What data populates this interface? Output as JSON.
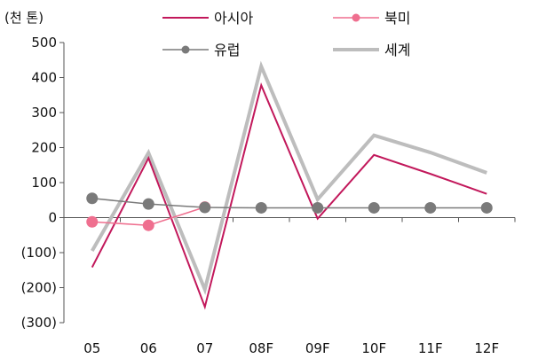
{
  "chart_data": {
    "type": "line",
    "unit": "(천 톤)",
    "categories": [
      "05",
      "06",
      "07",
      "08F",
      "09F",
      "10F",
      "11F",
      "12F"
    ],
    "y_ticks": [
      "500",
      "400",
      "300",
      "200",
      "100",
      "0",
      "(100)",
      "(200)",
      "(300)"
    ],
    "y_tick_values": [
      500,
      400,
      300,
      200,
      100,
      0,
      -100,
      -200,
      -300
    ],
    "ylim": [
      -300,
      500
    ],
    "grid": false,
    "legend_position": "top",
    "series": [
      {
        "name": "아시아",
        "color": "#c2185b",
        "marker": "none",
        "width": 2,
        "values": [
          -142,
          170,
          -255,
          378,
          -3,
          179,
          125,
          68
        ]
      },
      {
        "name": "북미",
        "color": "#ef6f8f",
        "marker": "circle",
        "width": 1.5,
        "values": [
          -12,
          -22,
          30,
          null,
          null,
          null,
          null,
          null
        ]
      },
      {
        "name": "유럽",
        "color": "#7a7a7a",
        "marker": "circle",
        "width": 1.5,
        "values": [
          55,
          39,
          29,
          28,
          28,
          28,
          28,
          28
        ]
      },
      {
        "name": "세계",
        "color": "#bdbdbd",
        "marker": "none",
        "width": 4,
        "values": [
          -95,
          185,
          -205,
          432,
          52,
          235,
          186,
          128
        ]
      }
    ]
  }
}
